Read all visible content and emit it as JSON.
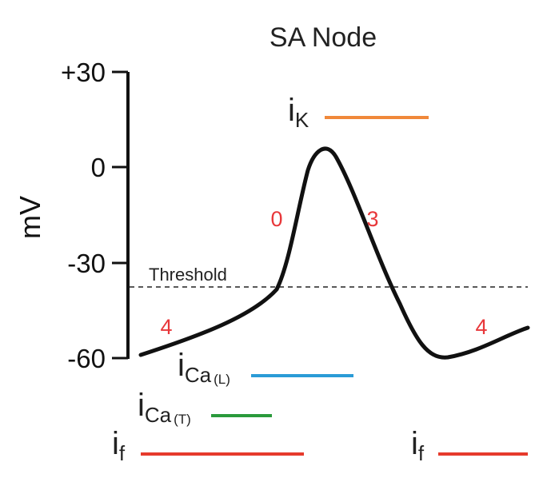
{
  "diagram": {
    "title": "SA Node",
    "y_axis": {
      "label": "mV",
      "ticks": [
        "+30",
        "0",
        "-30",
        "-60"
      ],
      "tick_values": [
        30,
        0,
        -30,
        -60
      ]
    },
    "threshold": {
      "label": "Threshold",
      "value_mV": -38
    },
    "phases": [
      {
        "label": "4",
        "color": "#e8373a"
      },
      {
        "label": "0",
        "color": "#e8373a"
      },
      {
        "label": "3",
        "color": "#e8373a"
      },
      {
        "label": "4",
        "color": "#e8373a"
      }
    ],
    "currents": [
      {
        "main": "i",
        "sub": "K",
        "sub2": "",
        "color": "#f0883a"
      },
      {
        "main": "i",
        "sub": "Ca",
        "sub2": "(L)",
        "color": "#2a9bd6"
      },
      {
        "main": "i",
        "sub": "Ca",
        "sub2": "(T)",
        "color": "#2a9a3c"
      },
      {
        "main": "i",
        "sub": "f",
        "sub2": "",
        "color": "#e63a2c"
      },
      {
        "main": "i",
        "sub": "f",
        "sub2": "",
        "color": "#e63a2c"
      }
    ],
    "trace_color": "#111111"
  }
}
